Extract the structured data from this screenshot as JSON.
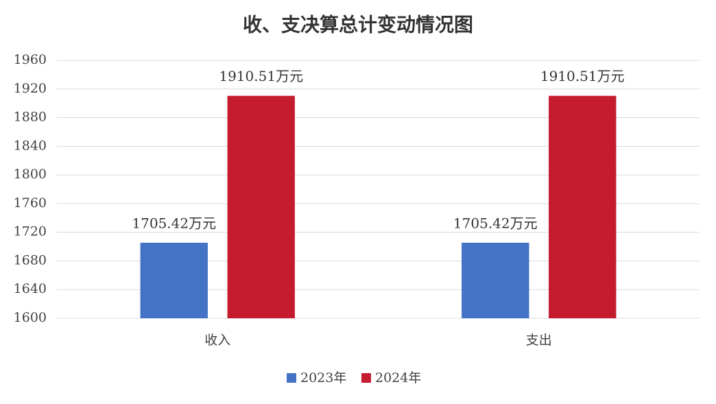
{
  "chart_data": {
    "type": "bar",
    "title": "收、支决算总计变动情况图",
    "categories": [
      "收入",
      "支出"
    ],
    "series": [
      {
        "name": "2023年",
        "color": "#4472c4",
        "values": [
          1705.42,
          1705.42
        ],
        "value_labels": [
          "1705.42万元",
          "1705.42万元"
        ]
      },
      {
        "name": "2024年",
        "color": "#c51b2f",
        "values": [
          1910.51,
          1910.51
        ],
        "value_labels": [
          "1910.51万元",
          "1910.51万元"
        ]
      }
    ],
    "ylim": [
      1600,
      1960
    ],
    "yticks": [
      1600,
      1640,
      1680,
      1720,
      1760,
      1800,
      1840,
      1880,
      1920,
      1960
    ],
    "grid": true,
    "legend": "bottom"
  }
}
